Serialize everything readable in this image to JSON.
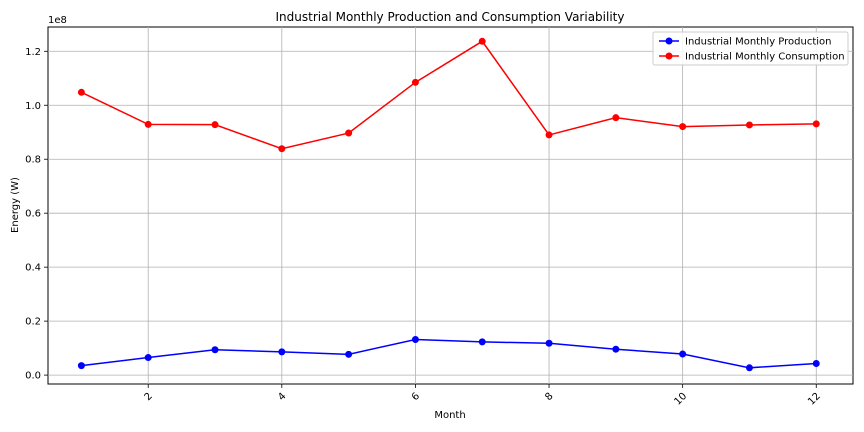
{
  "chart_data": {
    "type": "line",
    "title": "Industrial Monthly Production and Consumption Variability",
    "xlabel": "Month",
    "ylabel": "Energy (W)",
    "y_scale_label": "1e8",
    "x": [
      1,
      2,
      3,
      4,
      5,
      6,
      7,
      8,
      9,
      10,
      11,
      12
    ],
    "xlim": [
      0.5,
      12.55
    ],
    "ylim": [
      -0.033,
      1.29
    ],
    "x_ticks": [
      2,
      4,
      6,
      8,
      10,
      12
    ],
    "x_tick_labels": [
      "2",
      "4",
      "6",
      "8",
      "10",
      "12"
    ],
    "y_ticks": [
      0.0,
      0.2,
      0.4,
      0.6,
      0.8,
      1.0,
      1.2
    ],
    "y_tick_labels": [
      "0.0",
      "0.2",
      "0.4",
      "0.6",
      "0.8",
      "1.0",
      "1.2"
    ],
    "grid": true,
    "legend_position": "top-right",
    "series": [
      {
        "name": "Industrial Monthly Production",
        "color": "#0000ff",
        "values": [
          0.035,
          0.065,
          0.094,
          0.086,
          0.077,
          0.132,
          0.123,
          0.118,
          0.096,
          0.078,
          0.027,
          0.043
        ]
      },
      {
        "name": "Industrial Monthly Consumption",
        "color": "#ff0000",
        "values": [
          1.048,
          0.929,
          0.928,
          0.839,
          0.897,
          1.085,
          1.237,
          0.89,
          0.954,
          0.921,
          0.927,
          0.931
        ]
      }
    ]
  }
}
